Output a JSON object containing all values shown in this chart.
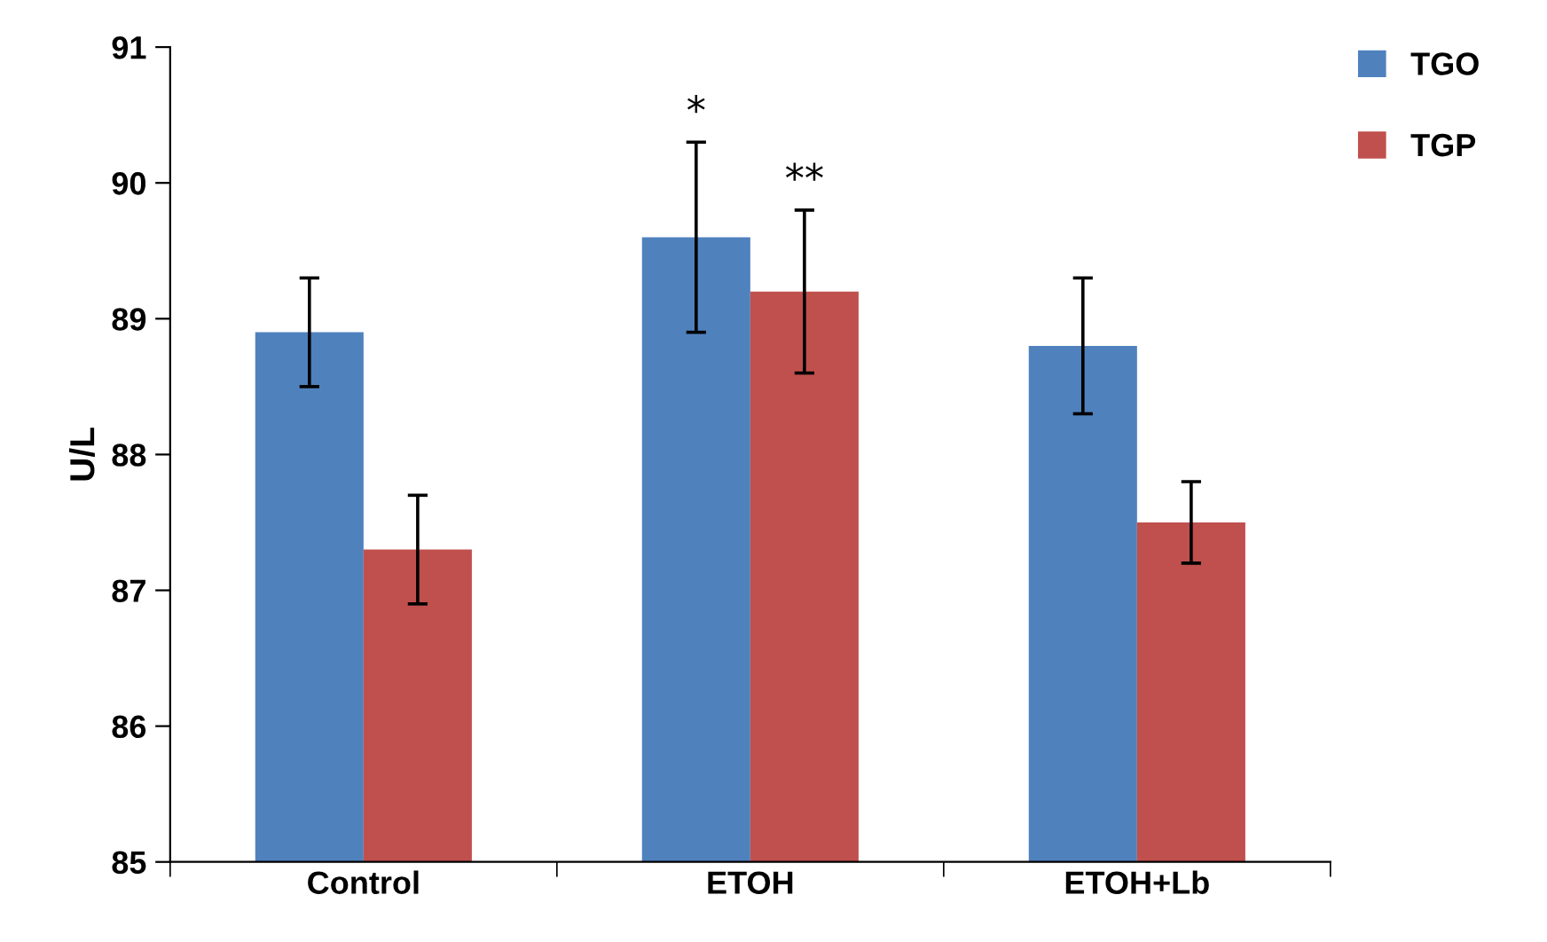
{
  "chart_data": {
    "type": "bar",
    "ylabel": "U/L",
    "categories": [
      "Control",
      "ETOH",
      "ETOH+Lb"
    ],
    "series": [
      {
        "name": "TGO",
        "color": "#4f81bd",
        "values": [
          88.9,
          89.6,
          88.8
        ],
        "errors": [
          0.4,
          0.7,
          0.5
        ]
      },
      {
        "name": "TGP",
        "color": "#c0504d",
        "values": [
          87.3,
          89.2,
          87.5
        ],
        "errors": [
          0.4,
          0.6,
          0.3
        ]
      }
    ],
    "ylim": [
      85,
      91
    ],
    "yticks": [
      85,
      86,
      87,
      88,
      89,
      90,
      91
    ],
    "grid": false,
    "legend": "top right",
    "annotations": [
      "*",
      "**"
    ]
  }
}
